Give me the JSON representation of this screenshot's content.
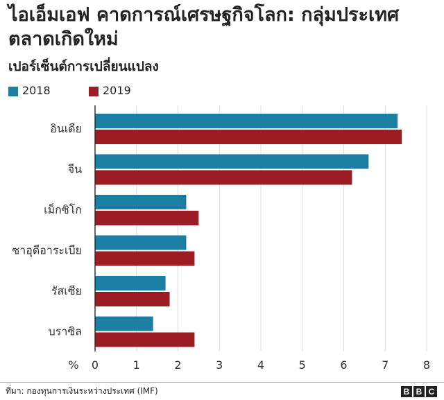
{
  "title": "ไอเอ็มเอฟ คาดการณ์เศรษฐกิจโลก: กลุ่มประเทศตลาดเกิดใหม่",
  "subtitle": "เปอร์เซ็นต์การเปลี่ยนแปลง",
  "source": "ที่มา: กองทุนการเงินระหว่างประเทศ (IMF)",
  "logo": {
    "letters": [
      "B",
      "B",
      "C"
    ]
  },
  "colors": {
    "series_2018": "#1a7fa3",
    "series_2019": "#9b1c22",
    "grid": "#dddddd",
    "axis": "#333333"
  },
  "chart_data": {
    "type": "bar",
    "orientation": "horizontal",
    "categories": [
      "อินเดีย",
      "จีน",
      "เม็กซิโก",
      "ซาอุดีอาระเบีย",
      "รัสเซีย",
      "บราซิล"
    ],
    "series": [
      {
        "name": "2018",
        "values": [
          7.3,
          6.6,
          2.2,
          2.2,
          1.7,
          1.4
        ]
      },
      {
        "name": "2019",
        "values": [
          7.4,
          6.2,
          2.5,
          2.4,
          1.8,
          2.4
        ]
      }
    ],
    "xlim": [
      0,
      8
    ],
    "xticks": [
      "0",
      "1",
      "2",
      "3",
      "4",
      "5",
      "6",
      "7",
      "8"
    ],
    "xlabel": "%",
    "legend_position": "top-left",
    "grid": "vertical"
  }
}
